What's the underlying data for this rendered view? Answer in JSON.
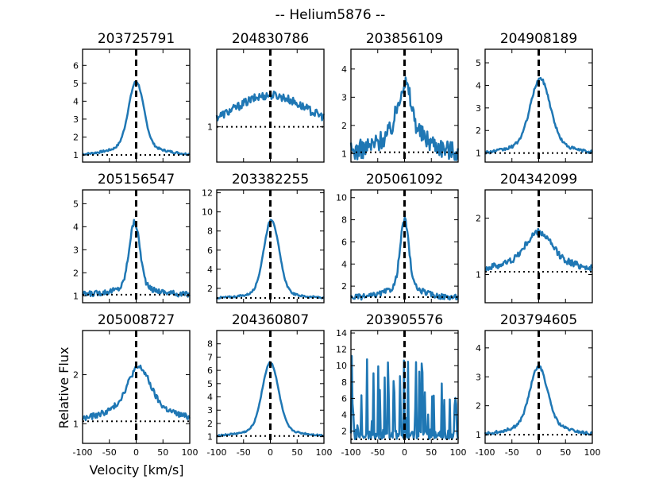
{
  "chart_data": {
    "type": "line",
    "title": "-- Helium5876 --",
    "xlabel": "Velocity [km/s]",
    "ylabel": "Relative Flux",
    "xlim": [
      -100,
      100
    ],
    "xticks": [
      -100,
      -50,
      0,
      50,
      100
    ],
    "line_color": "#1f77b4",
    "panels": [
      {
        "title": "203725791",
        "ylim": [
          0.6,
          6.9
        ],
        "yticks": [
          1,
          2,
          3,
          4,
          5,
          6
        ],
        "baseline": 1,
        "peak": 5.1,
        "center": 0,
        "width": 14,
        "wing": 45,
        "wingAmp": 0.5,
        "noise": 0.06
      },
      {
        "title": "204830786",
        "ylim": [
          0.5,
          2.1
        ],
        "yticks": [
          1
        ],
        "baseline": 1,
        "peak": 1.45,
        "center": 0,
        "width": 55,
        "wing": 80,
        "wingAmp": 0.2,
        "noise": 0.06
      },
      {
        "title": "203856109",
        "ylim": [
          0.7,
          4.7
        ],
        "yticks": [
          1,
          2,
          3,
          4
        ],
        "baseline": 1.05,
        "peak": 3.5,
        "center": 0,
        "width": 12,
        "wing": 40,
        "wingAmp": 0.8,
        "noise": 0.35
      },
      {
        "title": "204908189",
        "ylim": [
          0.6,
          5.6
        ],
        "yticks": [
          1,
          2,
          3,
          4,
          5
        ],
        "baseline": 1,
        "peak": 4.3,
        "center": 3,
        "width": 18,
        "wing": 45,
        "wingAmp": 0.5,
        "noise": 0.07
      },
      {
        "title": "205156547",
        "ylim": [
          0.7,
          5.6
        ],
        "yticks": [
          1,
          2,
          3,
          4,
          5
        ],
        "baseline": 1.05,
        "peak": 4.2,
        "center": -3,
        "width": 10,
        "wing": 40,
        "wingAmp": 0.3,
        "noise": 0.12
      },
      {
        "title": "203382255",
        "ylim": [
          0.5,
          12.3
        ],
        "yticks": [
          2,
          4,
          6,
          8,
          10,
          12
        ],
        "baseline": 1,
        "peak": 9.2,
        "center": 2,
        "width": 14,
        "wing": 40,
        "wingAmp": 0.6,
        "noise": 0.1
      },
      {
        "title": "205061092",
        "ylim": [
          0.5,
          10.7
        ],
        "yticks": [
          2,
          4,
          6,
          8,
          10
        ],
        "baseline": 1,
        "peak": 8.0,
        "center": 0,
        "width": 8,
        "wing": 30,
        "wingAmp": 1.0,
        "noise": 0.25
      },
      {
        "title": "204342099",
        "ylim": [
          0.5,
          2.5
        ],
        "yticks": [
          1,
          2
        ],
        "baseline": 1.05,
        "peak": 1.75,
        "center": 0,
        "width": 22,
        "wing": 60,
        "wingAmp": 0.25,
        "noise": 0.06
      },
      {
        "title": "205008727",
        "ylim": [
          0.6,
          2.9
        ],
        "yticks": [
          1,
          2
        ],
        "baseline": 1.05,
        "peak": 2.15,
        "center": 5,
        "width": 20,
        "wing": 55,
        "wingAmp": 0.35,
        "noise": 0.06
      },
      {
        "title": "204360807",
        "ylim": [
          0.5,
          9.0
        ],
        "yticks": [
          1,
          2,
          3,
          4,
          5,
          6,
          7,
          8
        ],
        "baseline": 1.05,
        "peak": 6.6,
        "center": 0,
        "width": 15,
        "wing": 45,
        "wingAmp": 0.5,
        "noise": 0.06
      },
      {
        "title": "203905576",
        "ylim": [
          0.5,
          14.3
        ],
        "yticks": [
          2,
          4,
          6,
          8,
          10,
          12,
          14
        ],
        "baseline": 1,
        "peak": 1,
        "center": 0,
        "width": 10,
        "wing": 10,
        "wingAmp": 0,
        "noise": 0,
        "spiky": true
      },
      {
        "title": "203794605",
        "ylim": [
          0.7,
          4.6
        ],
        "yticks": [
          1,
          2,
          3,
          4
        ],
        "baseline": 1.0,
        "peak": 3.35,
        "center": 0,
        "width": 16,
        "wing": 45,
        "wingAmp": 0.4,
        "noise": 0.05
      }
    ]
  }
}
